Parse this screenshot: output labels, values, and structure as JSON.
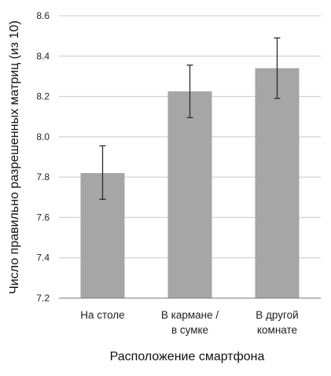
{
  "chart_data": {
    "type": "bar",
    "categories": [
      [
        "На столе"
      ],
      [
        "В кармане /",
        "в сумке"
      ],
      [
        "В другой",
        "комнате"
      ]
    ],
    "values": [
      7.82,
      8.225,
      8.34
    ],
    "error_low": [
      7.69,
      8.095,
      8.19
    ],
    "error_high": [
      7.955,
      8.355,
      8.49
    ],
    "ylim": [
      7.2,
      8.6
    ],
    "yticks": [
      "7.2",
      "7.4",
      "7.6",
      "7.8",
      "8.0",
      "8.2",
      "8.4",
      "8.6"
    ],
    "xlabel": "Расположение смартфона",
    "ylabel": "Число правильно разрешенных матриц (из 10)",
    "grid": true,
    "bar_color": "#a6a6a6"
  }
}
